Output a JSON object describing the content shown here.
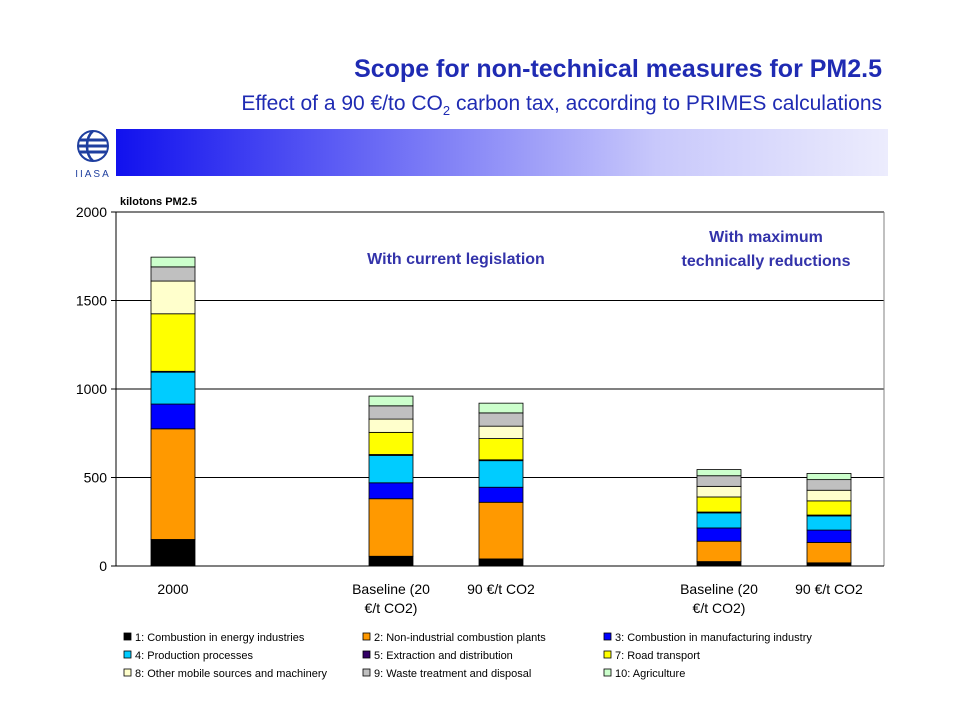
{
  "header": {
    "title": "Scope for non-technical measures for PM2.5",
    "subtitle_pre": "Effect of a 90 €/to CO",
    "subtitle_sub": "2",
    "subtitle_post": " carbon tax, according to PRIMES calculations",
    "logo_text": "IIASA"
  },
  "colors": {
    "title": "#1f2bb3",
    "annotation": "#3333aa"
  },
  "chart_data": {
    "type": "bar",
    "stacked": true,
    "ylabel": "kilotons PM2.5",
    "ylim": [
      0,
      2000
    ],
    "yticks": [
      0,
      500,
      1000,
      1500,
      2000
    ],
    "grid": true,
    "legend_position": "bottom",
    "categories": [
      "2000",
      "Baseline (20 €/t CO2)",
      "90 €/t CO2",
      "Baseline (20 €/t CO2)",
      "90 €/t CO2"
    ],
    "category_lines": [
      [
        "2000"
      ],
      [
        "Baseline (20",
        "€/t CO2)"
      ],
      [
        "90 €/t CO2"
      ],
      [
        "Baseline (20",
        "€/t CO2)"
      ],
      [
        "90 €/t CO2"
      ]
    ],
    "groups": [
      {
        "label": "With current legislation",
        "categories": [
          1,
          2
        ]
      },
      {
        "label_lines": [
          "With maximum",
          "technically reductions"
        ],
        "categories": [
          3,
          4
        ]
      }
    ],
    "series": [
      {
        "name": "1: Combustion in energy industries",
        "color": "#000000",
        "values": [
          150,
          55,
          40,
          25,
          18
        ]
      },
      {
        "name": "2: Non-industrial combustion plants",
        "color": "#ff9900",
        "values": [
          625,
          325,
          320,
          115,
          115
        ]
      },
      {
        "name": "3: Combustion in manufacturing industry",
        "color": "#0000ff",
        "values": [
          140,
          90,
          85,
          75,
          70
        ]
      },
      {
        "name": "4: Production processes",
        "color": "#00ccff",
        "values": [
          180,
          155,
          150,
          85,
          80
        ]
      },
      {
        "name": "5: Extraction and distribution",
        "color": "#330066",
        "values": [
          5,
          5,
          5,
          5,
          5
        ]
      },
      {
        "name": "7: Road transport",
        "color": "#ffff00",
        "values": [
          325,
          125,
          120,
          85,
          80
        ]
      },
      {
        "name": "8: Other mobile sources and machinery",
        "color": "#ffffcc",
        "values": [
          185,
          75,
          70,
          60,
          60
        ]
      },
      {
        "name": "9: Waste treatment and disposal",
        "color": "#c0c0c0",
        "values": [
          80,
          75,
          75,
          60,
          60
        ]
      },
      {
        "name": "10: Agriculture",
        "color": "#ccffcc",
        "values": [
          55,
          55,
          55,
          35,
          35
        ]
      }
    ]
  }
}
